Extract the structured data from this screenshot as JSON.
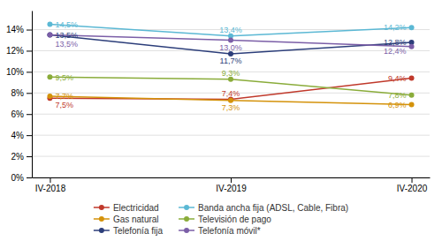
{
  "chart_data": {
    "type": "line",
    "categories": [
      "IV-2018",
      "IV-2019",
      "IV-2020"
    ],
    "series": [
      {
        "name": "Electricidad",
        "color": "#c0392b",
        "marker": "circle",
        "line_style": "solid",
        "values": [
          7.5,
          7.4,
          9.4
        ],
        "value_labels": [
          "7,5%",
          "7,4%",
          "9,4%"
        ]
      },
      {
        "name": "Gas natural",
        "color": "#d4920a",
        "marker": "circle",
        "line_style": "solid",
        "values": [
          7.7,
          7.3,
          6.9
        ],
        "value_labels": [
          "7,7%",
          "7,3%",
          "6,9%"
        ]
      },
      {
        "name": "Telefonía fija",
        "color": "#2c3e7a",
        "marker": "circle",
        "line_style": "solid",
        "values": [
          13.5,
          11.7,
          12.8
        ],
        "value_labels": [
          "13,5%",
          "11,7%",
          "12,8%"
        ]
      },
      {
        "name": "Banda ancha fija (ADSL, Cable, Fibra)",
        "color": "#5bb8d4",
        "marker": "circle",
        "line_style": "solid",
        "values": [
          14.5,
          13.4,
          14.2
        ],
        "value_labels": [
          "14,5%",
          "13,4%",
          "14,2%"
        ]
      },
      {
        "name": "Televisión de pago",
        "color": "#8aac3a",
        "marker": "circle",
        "line_style": "solid",
        "values": [
          9.5,
          9.3,
          7.8
        ],
        "value_labels": [
          "9,5%",
          "9,3%",
          "7,8%"
        ]
      },
      {
        "name": "Telefonía móvil*",
        "color": "#7b5ea7",
        "marker": "circle",
        "line_style": "solid",
        "values": [
          13.5,
          13.0,
          12.4
        ],
        "value_labels": [
          "13,5%",
          "13,0%",
          "12,4%"
        ]
      }
    ],
    "ylim": [
      0,
      15.8
    ],
    "yticks": [
      {
        "value": 0,
        "label": "0%"
      },
      {
        "value": 2,
        "label": "2%"
      },
      {
        "value": 4,
        "label": "4%"
      },
      {
        "value": 6,
        "label": "6%"
      },
      {
        "value": 8,
        "label": "8%"
      },
      {
        "value": 10,
        "label": "10%"
      },
      {
        "value": 12,
        "label": "12%"
      },
      {
        "value": 14,
        "label": "14%"
      }
    ],
    "grid": true,
    "legend": "bottom",
    "data_labels": true
  }
}
